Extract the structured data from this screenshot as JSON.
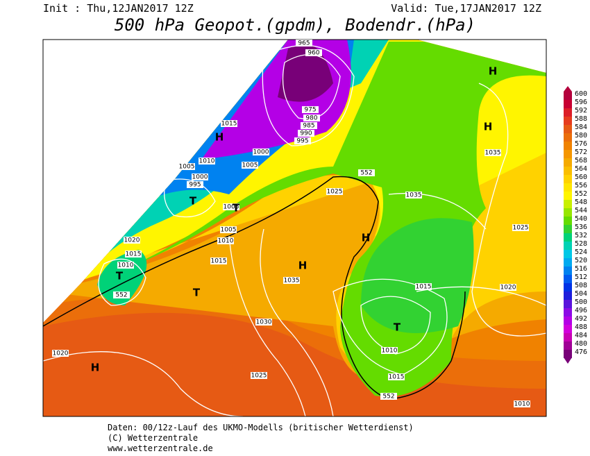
{
  "header": {
    "init": "Init : Thu,12JAN2017 12Z",
    "valid": "Valid: Tue,17JAN2017 12Z",
    "title": "500 hPa Geopot.(gpdm), Bodendr.(hPa)"
  },
  "map_labels": [
    "965",
    "960",
    "975",
    "980",
    "985",
    "990",
    "995",
    "1015",
    "H",
    "1010",
    "1000",
    "1005",
    "1005",
    "995",
    "1000",
    "T",
    "1005",
    "T",
    "1005",
    "1010",
    "1025",
    "552",
    "1035",
    "H",
    "H",
    "1035",
    "H",
    "1025",
    "1020",
    "1015",
    "1010",
    "T",
    "552",
    "1015",
    "T",
    "H",
    "1035",
    "1015",
    "1020",
    "1030",
    "T",
    "1010",
    "1020",
    "H",
    "1025",
    "1015",
    "552",
    "1010"
  ],
  "colorbar": {
    "levels": [
      600,
      596,
      592,
      588,
      584,
      580,
      576,
      572,
      568,
      564,
      560,
      556,
      552,
      548,
      544,
      540,
      536,
      532,
      528,
      524,
      520,
      516,
      512,
      508,
      504,
      500,
      496,
      492,
      488,
      484,
      480,
      476
    ],
    "colors": [
      "#b4003c",
      "#c80032",
      "#dc1e28",
      "#e63c1e",
      "#e65a14",
      "#eb6e0a",
      "#f08200",
      "#f59600",
      "#f5aa00",
      "#fabe00",
      "#ffd200",
      "#ffe600",
      "#fff500",
      "#c8f000",
      "#96e600",
      "#64dc00",
      "#32d232",
      "#00d278",
      "#00d2b4",
      "#00c8e6",
      "#00aaf0",
      "#0082f0",
      "#005af0",
      "#0032e6",
      "#1e1edc",
      "#5a14dc",
      "#8c0ae6",
      "#b400e6",
      "#d200dc",
      "#c800b4",
      "#a00096",
      "#780078"
    ]
  },
  "footer": [
    "Daten: 00/12z-Lauf des UKMO-Modells (britischer Wetterdienst)",
    "(C) Wetterzentrale",
    "www.wetterzentrale.de"
  ]
}
